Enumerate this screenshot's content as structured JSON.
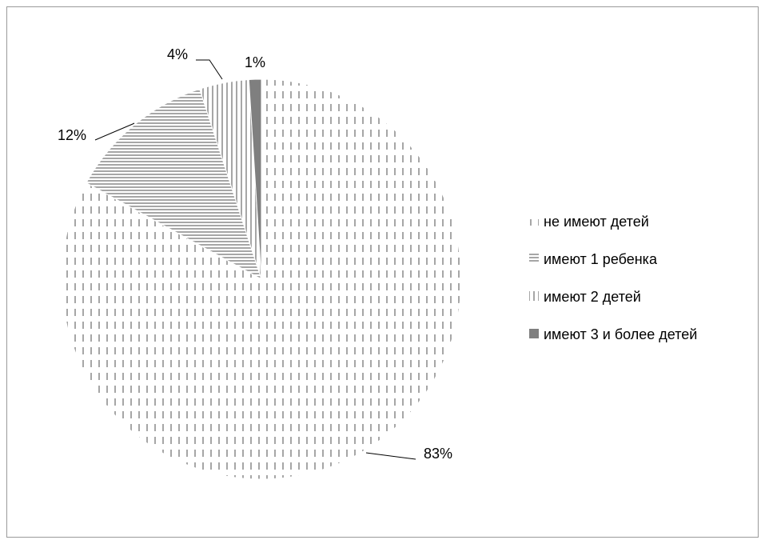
{
  "chart_data": {
    "type": "pie",
    "title": "",
    "categories": [
      "не имеют детей",
      "имеют 1 ребенка",
      "имеют 2 детей",
      "имеют 3 и более детей"
    ],
    "values": [
      83,
      12,
      4,
      1
    ],
    "data_labels": [
      "83%",
      "12%",
      "4%",
      "1%"
    ],
    "legend": {
      "placement": "right",
      "entries": [
        "не имеют детей",
        "имеют 1 ребенка",
        "имеют 2 детей",
        "имеют 3 и более детей"
      ]
    },
    "colors": [
      "#a6a6a6",
      "#a6a6a6",
      "#a6a6a6",
      "#7f7f7f"
    ],
    "patterns": [
      "dashed-vertical",
      "horizontal-lines",
      "vertical-lines",
      "solid"
    ]
  }
}
